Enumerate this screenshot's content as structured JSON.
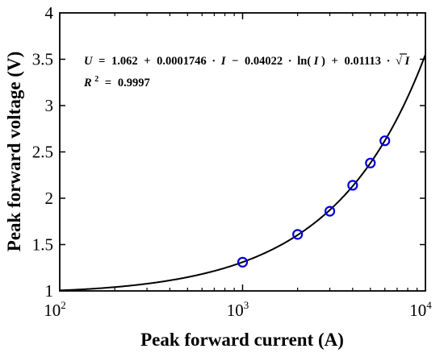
{
  "chart_data": {
    "type": "scatter",
    "xlabel": "Peak forward current (A)",
    "ylabel": "Peak forward voltage (V)",
    "xscale": "log",
    "xlim": [
      100,
      10000
    ],
    "ylim": [
      1,
      4
    ],
    "x_ticks": [
      {
        "value": 100,
        "base": "10",
        "exp": "2"
      },
      {
        "value": 1000,
        "base": "10",
        "exp": "3"
      },
      {
        "value": 10000,
        "base": "10",
        "exp": "4"
      }
    ],
    "y_ticks": [
      "1",
      "1.5",
      "2",
      "2.5",
      "3",
      "3.5",
      "4"
    ],
    "grid": false,
    "series": [
      {
        "kind": "markers",
        "marker": "circle-open",
        "color": "#0000dd",
        "x": [
          1000,
          2000,
          3000,
          4000,
          5000,
          6000
        ],
        "y": [
          1.31,
          1.61,
          1.86,
          2.14,
          2.38,
          2.62
        ]
      },
      {
        "kind": "fit-line",
        "color": "#000000",
        "coefficients": {
          "a": 1.062,
          "b": 0.0001746,
          "c": -0.04022,
          "d": 0.01113
        }
      }
    ],
    "annotations": {
      "equation": {
        "lhs": "U",
        "eq": "=",
        "const": "1.062",
        "plus1": "+",
        "t1": "0.0001746",
        "dot1": "·",
        "var1": "I",
        "minus": "−",
        "t2": "0.04022",
        "dot2": "·",
        "ln": "ln(",
        "var2": "I",
        "lnclose": ")",
        "plus2": "+",
        "t3": "0.01113",
        "dot3": "·",
        "sqrt": "√",
        "var3": "I"
      },
      "r2": {
        "label": "R",
        "sup": "2",
        "eq": "=",
        "value": "0.9997"
      }
    }
  }
}
